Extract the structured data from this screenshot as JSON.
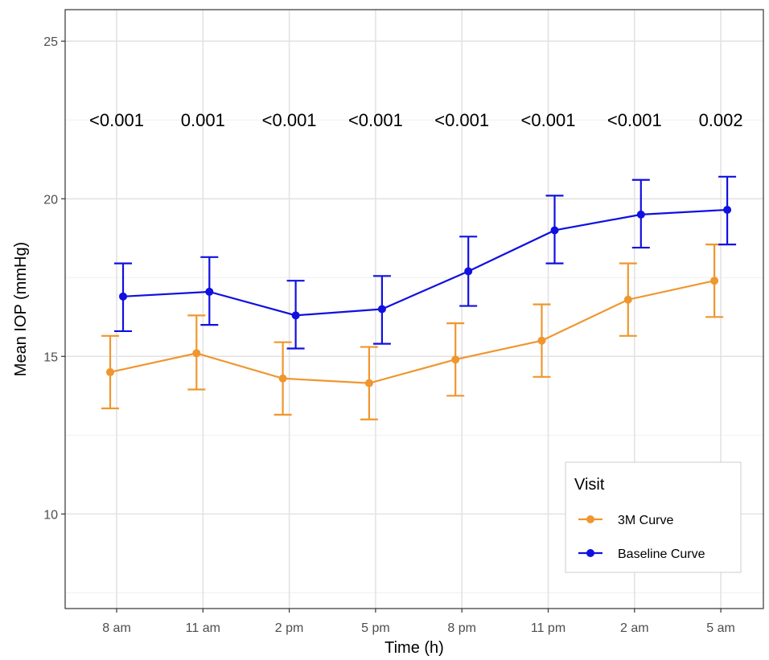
{
  "chart_data": {
    "type": "line",
    "xlabel": "Time (h)",
    "ylabel": "Mean IOP (mmHg)",
    "categories": [
      "8 am",
      "11 am",
      "2 pm",
      "5 pm",
      "8 pm",
      "11 pm",
      "2 am",
      "5 am"
    ],
    "ylim": [
      7,
      26
    ],
    "yticks": [
      10,
      15,
      20,
      25
    ],
    "grid": true,
    "p_values": [
      "<0.001",
      "0.001",
      "<0.001",
      "<0.001",
      "<0.001",
      "<0.001",
      "<0.001",
      "0.002"
    ],
    "series": [
      {
        "name": "3M Curve",
        "color": "#F0962E",
        "values": [
          14.5,
          15.1,
          14.3,
          14.15,
          14.9,
          15.5,
          16.8,
          17.4
        ],
        "error_low": [
          13.35,
          13.95,
          13.15,
          13.0,
          13.75,
          14.35,
          15.65,
          16.25
        ],
        "error_high": [
          15.65,
          16.3,
          15.45,
          15.3,
          16.05,
          16.65,
          17.95,
          18.55
        ]
      },
      {
        "name": "Baseline Curve",
        "color": "#1010E0",
        "values": [
          16.9,
          17.05,
          16.3,
          16.5,
          17.7,
          19.0,
          19.5,
          19.65
        ],
        "error_low": [
          15.8,
          16.0,
          15.25,
          15.4,
          16.6,
          17.95,
          18.45,
          18.55
        ],
        "error_high": [
          17.95,
          18.15,
          17.4,
          17.55,
          18.8,
          20.1,
          20.6,
          20.7
        ]
      }
    ],
    "legend": {
      "title": "Visit",
      "position": "bottom-right",
      "entries": [
        "3M Curve",
        "Baseline Curve"
      ]
    }
  }
}
